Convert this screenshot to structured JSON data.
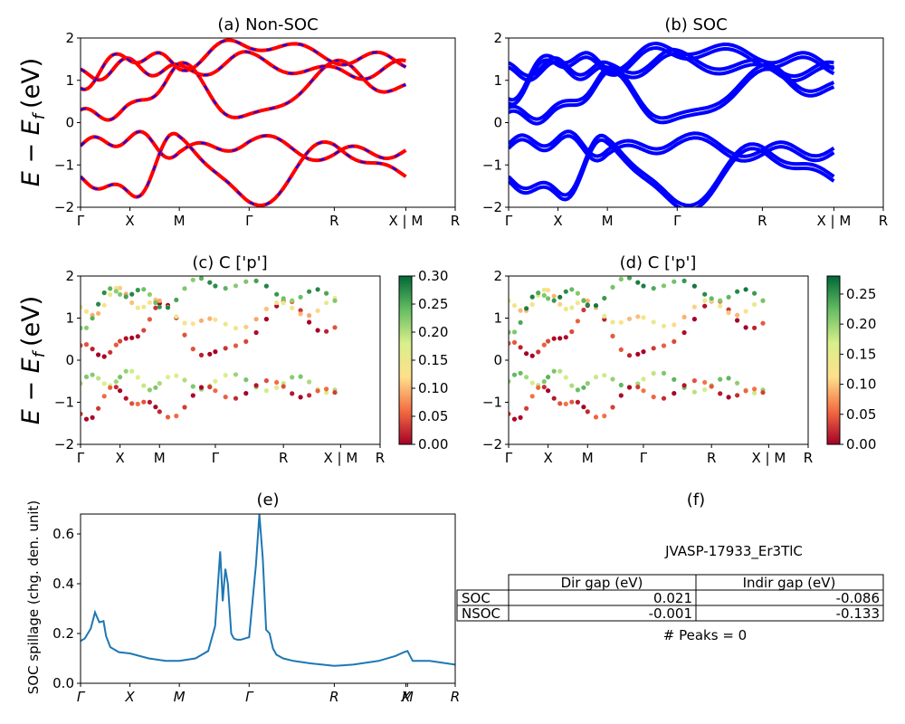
{
  "figure": {
    "panels": {
      "a": {
        "title": "(a) Non-SOC"
      },
      "b": {
        "title": "(b) SOC"
      },
      "c": {
        "title": "(c)  C ['p']"
      },
      "d": {
        "title": "(d) C ['p']"
      },
      "e": {
        "title": "(e)"
      },
      "f": {
        "title": "(f)"
      }
    },
    "band_ylabel": "E − E",
    "band_ylabel_sub": "f",
    "band_ylabel_unit": "(eV)",
    "spillage_ylabel": "SOC spillage (chg. den. unit)"
  },
  "chart_data": [
    {
      "panel": "a",
      "type": "line",
      "title": "(a) Non-SOC",
      "ylabel": "E − E_f (eV)",
      "ylim": [
        -2,
        2
      ],
      "yticks": [
        "−2",
        "−1",
        "0",
        "1",
        "2"
      ],
      "kpath_labels": [
        "Γ",
        "X",
        "M",
        "Γ",
        "R",
        "X | M",
        "R"
      ],
      "kpath_positions": [
        0,
        0.58,
        1.16,
        1.98,
        2.98,
        3.82,
        4.4
      ],
      "colors": {
        "primary": "#ff0000",
        "dash": "#0000ff"
      },
      "series": [
        {
          "x": [
            0,
            0.58,
            1.16,
            1.98,
            2.98,
            3.82
          ],
          "y": [
            -0.55,
            -0.35,
            -0.7,
            -0.45,
            -0.75,
            -0.65
          ]
        },
        {
          "x": [
            0,
            0.58,
            1.16,
            1.98,
            2.98,
            3.82
          ],
          "y": [
            0.15,
            0.3,
            1.25,
            0.05,
            1.3,
            0.75
          ]
        },
        {
          "x": [
            0,
            0.58,
            1.16,
            1.98,
            2.98,
            3.82
          ],
          "y": [
            1.1,
            1.35,
            1.2,
            1.5,
            1.15,
            1.3
          ]
        },
        {
          "x": [
            0,
            0.58,
            1.16,
            1.98,
            2.98,
            3.82
          ],
          "y": [
            -1.3,
            -1.7,
            -0.35,
            -1.9,
            -0.55,
            -1.3
          ]
        },
        {
          "x": [
            0,
            0.58,
            1.16,
            1.98,
            2.98,
            3.82
          ],
          "y": [
            0.95,
            1.6,
            1.4,
            1.9,
            1.55,
            1.45
          ]
        }
      ]
    },
    {
      "panel": "b",
      "type": "line",
      "title": "(b) SOC",
      "ylim": [
        -2,
        2
      ],
      "yticks": [
        "−2",
        "−1",
        "0",
        "1",
        "2"
      ],
      "kpath_labels": [
        "Γ",
        "X",
        "M",
        "Γ",
        "R",
        "X | M",
        "R"
      ],
      "kpath_positions": [
        0,
        0.58,
        1.16,
        1.98,
        2.98,
        3.82,
        4.4
      ],
      "colors": {
        "primary": "#0000ff"
      },
      "series": [
        {
          "x": [
            0,
            0.58,
            1.16,
            1.98,
            2.98,
            3.82
          ],
          "y": [
            -0.5,
            -0.35,
            -0.65,
            -0.4,
            -0.65,
            -0.6
          ]
        },
        {
          "x": [
            0,
            0.58,
            1.16,
            1.98,
            2.98,
            3.82
          ],
          "y": [
            0.2,
            0.3,
            1.15,
            0.05,
            1.2,
            0.8
          ]
        },
        {
          "x": [
            0,
            0.58,
            1.16,
            1.98,
            2.98,
            3.82
          ],
          "y": [
            1.25,
            1.35,
            1.25,
            1.55,
            1.3,
            1.25
          ]
        },
        {
          "x": [
            0,
            0.58,
            1.16,
            1.98,
            2.98,
            3.82
          ],
          "y": [
            -1.3,
            -1.65,
            -0.4,
            -1.9,
            -0.6,
            -1.3
          ]
        },
        {
          "x": [
            0,
            0.58,
            1.16,
            1.98,
            2.98,
            3.82
          ],
          "y": [
            0.7,
            1.6,
            1.4,
            1.8,
            1.6,
            1.4
          ]
        }
      ]
    },
    {
      "panel": "c",
      "type": "scatter",
      "title": "(c)  C ['p']",
      "ylim": [
        -2,
        2
      ],
      "yticks": [
        "−2",
        "−1",
        "0",
        "1",
        "2"
      ],
      "kpath_labels": [
        "Γ",
        "X",
        "M",
        "Γ",
        "R",
        "X | M",
        "R"
      ],
      "kpath_positions": [
        0,
        0.58,
        1.16,
        1.98,
        2.98,
        3.82,
        4.4
      ],
      "colorbar": {
        "min": 0.0,
        "max": 0.3,
        "ticks": [
          "0.00",
          "0.05",
          "0.10",
          "0.15",
          "0.20",
          "0.25",
          "0.30"
        ],
        "colormap": "RdYlGn"
      },
      "series": [
        {
          "x": [
            0,
            0.58,
            1.16,
            1.98,
            2.98,
            3.82
          ],
          "y": [
            -0.55,
            -0.4,
            -0.55,
            -0.5,
            -0.55,
            -0.6
          ],
          "c": 0.2
        },
        {
          "x": [
            0,
            0.58,
            1.16,
            1.98,
            2.98,
            3.82
          ],
          "y": [
            0.2,
            0.3,
            1.2,
            0.05,
            1.25,
            0.7
          ],
          "c": 0.02
        },
        {
          "x": [
            0,
            0.58,
            1.16,
            1.98,
            2.98,
            3.82
          ],
          "y": [
            1.1,
            1.55,
            1.25,
            0.8,
            1.2,
            1.3
          ],
          "c": 0.12
        },
        {
          "x": [
            0,
            0.58,
            1.16,
            1.98,
            2.98,
            3.82
          ],
          "y": [
            -1.3,
            -0.75,
            -1.25,
            -0.75,
            -0.65,
            -0.9
          ],
          "c": 0.03
        },
        {
          "x": [
            0,
            0.58,
            1.16,
            1.98,
            2.98,
            3.82
          ],
          "y": [
            0.9,
            1.7,
            1.4,
            1.9,
            1.6,
            1.45
          ],
          "c": 0.25
        }
      ]
    },
    {
      "panel": "d",
      "type": "scatter",
      "title": "(d) C ['p']",
      "ylim": [
        -2,
        2
      ],
      "yticks": [
        "−2",
        "−1",
        "0",
        "1",
        "2"
      ],
      "kpath_labels": [
        "Γ",
        "X",
        "M",
        "Γ",
        "R",
        "X | M",
        "R"
      ],
      "kpath_positions": [
        0,
        0.58,
        1.16,
        1.98,
        2.98,
        3.82,
        4.4
      ],
      "colorbar": {
        "min": 0.0,
        "max": 0.28,
        "ticks": [
          "0.00",
          "0.05",
          "0.10",
          "0.15",
          "0.20",
          "0.25"
        ],
        "colormap": "RdYlGn"
      },
      "series": [
        {
          "x": [
            0,
            0.58,
            1.16,
            1.98,
            2.98,
            3.82
          ],
          "y": [
            -0.5,
            -0.4,
            -0.55,
            -0.45,
            -0.6,
            -0.6
          ],
          "c": 0.2
        },
        {
          "x": [
            0,
            0.58,
            1.16,
            1.98,
            2.98,
            3.82
          ],
          "y": [
            0.25,
            0.3,
            1.15,
            0.05,
            1.25,
            0.8
          ],
          "c": 0.02
        },
        {
          "x": [
            0,
            0.58,
            1.16,
            1.98,
            2.98,
            3.82
          ],
          "y": [
            1.25,
            1.5,
            1.25,
            0.85,
            1.25,
            1.25
          ],
          "c": 0.12
        },
        {
          "x": [
            0,
            0.58,
            1.16,
            1.98,
            2.98,
            3.82
          ],
          "y": [
            -1.3,
            -0.75,
            -1.25,
            -0.75,
            -0.65,
            -0.9
          ],
          "c": 0.03
        },
        {
          "x": [
            0,
            0.58,
            1.16,
            1.98,
            2.98,
            3.82
          ],
          "y": [
            0.8,
            1.6,
            1.45,
            1.9,
            1.6,
            1.45
          ],
          "c": 0.24
        }
      ]
    },
    {
      "panel": "e",
      "type": "line",
      "title": "(e)",
      "ylabel": "SOC spillage (chg. den. unit)",
      "ylim": [
        0.0,
        0.68
      ],
      "yticks": [
        "0.0",
        "0.2",
        "0.4",
        "0.6"
      ],
      "kpath_labels": [
        "Γ",
        "X",
        "M",
        "Γ",
        "R",
        "X",
        "M",
        "R"
      ],
      "kpath_positions": [
        0,
        0.58,
        1.16,
        1.98,
        2.98,
        3.82,
        3.84,
        4.4
      ],
      "color": "#1f77b4",
      "x": [
        0,
        0.05,
        0.12,
        0.17,
        0.22,
        0.27,
        0.3,
        0.35,
        0.45,
        0.58,
        0.8,
        1.0,
        1.16,
        1.35,
        1.5,
        1.58,
        1.64,
        1.67,
        1.7,
        1.73,
        1.77,
        1.8,
        1.84,
        1.88,
        1.98,
        2.06,
        2.1,
        2.14,
        2.18,
        2.22,
        2.26,
        2.3,
        2.38,
        2.5,
        2.7,
        2.98,
        3.2,
        3.5,
        3.7,
        3.8,
        3.84,
        3.9,
        4.1,
        4.4
      ],
      "y": [
        0.17,
        0.18,
        0.22,
        0.285,
        0.245,
        0.25,
        0.19,
        0.145,
        0.125,
        0.12,
        0.1,
        0.09,
        0.09,
        0.1,
        0.13,
        0.23,
        0.53,
        0.33,
        0.46,
        0.4,
        0.2,
        0.18,
        0.175,
        0.175,
        0.185,
        0.475,
        0.68,
        0.5,
        0.215,
        0.2,
        0.14,
        0.115,
        0.1,
        0.09,
        0.08,
        0.07,
        0.075,
        0.09,
        0.11,
        0.125,
        0.13,
        0.09,
        0.09,
        0.075
      ]
    }
  ],
  "info_panel": {
    "material_id": "JVASP-17933_Er3TlC",
    "table": {
      "headers": [
        "",
        "Dir gap (eV)",
        "Indir gap (eV)"
      ],
      "rows": [
        [
          "SOC",
          "0.021",
          "-0.086"
        ],
        [
          "NSOC",
          "-0.001",
          "-0.133"
        ]
      ]
    },
    "peaks": "# Peaks = 0"
  }
}
